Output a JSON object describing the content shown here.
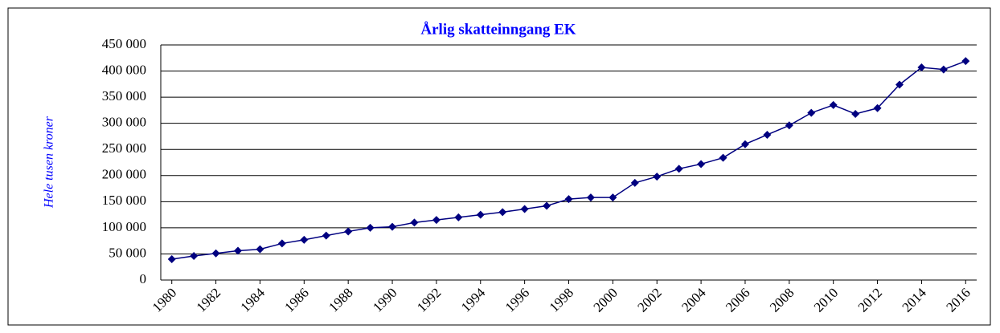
{
  "chart_data": {
    "type": "line",
    "title": "Årlig skatteinngang EK",
    "y_label": "Hele tusen kroner",
    "categories": [
      "1980",
      null,
      "1982",
      null,
      "1984",
      null,
      "1986",
      null,
      "1988",
      null,
      "1990",
      null,
      "1992",
      null,
      "1994",
      null,
      "1996",
      null,
      "1998",
      null,
      "2000",
      null,
      "2002",
      null,
      "2004",
      null,
      "2006",
      null,
      "2008",
      null,
      "2010",
      null,
      "2012",
      null,
      "2014",
      null,
      "2016"
    ],
    "series": [
      {
        "color": "#000080",
        "values": [
          40000,
          46000,
          51000,
          56000,
          59000,
          70000,
          77000,
          85000,
          93000,
          100000,
          102000,
          110000,
          115000,
          120000,
          125000,
          130000,
          136000,
          142000,
          155000,
          158000,
          158000,
          186000,
          198000,
          213000,
          222000,
          234000,
          260000,
          278000,
          296000,
          320000,
          335000,
          318000,
          329000,
          374000,
          407000,
          403000,
          419000
        ]
      }
    ],
    "ylim": [
      0,
      450000
    ],
    "yticks": [
      0,
      {
        "value": 50000,
        "label": "50 000"
      },
      {
        "value": 100000,
        "label": "100 000"
      },
      {
        "value": 150000,
        "label": "150 000"
      },
      {
        "value": 200000,
        "label": "200 000"
      },
      {
        "value": 250000,
        "label": "250 000"
      },
      {
        "value": 300000,
        "label": "300 000"
      },
      {
        "value": 350000,
        "label": "350 000"
      },
      {
        "value": 400000,
        "label": "400 000"
      },
      {
        "value": 450000,
        "label": "450 000"
      }
    ],
    "grid": true
  }
}
